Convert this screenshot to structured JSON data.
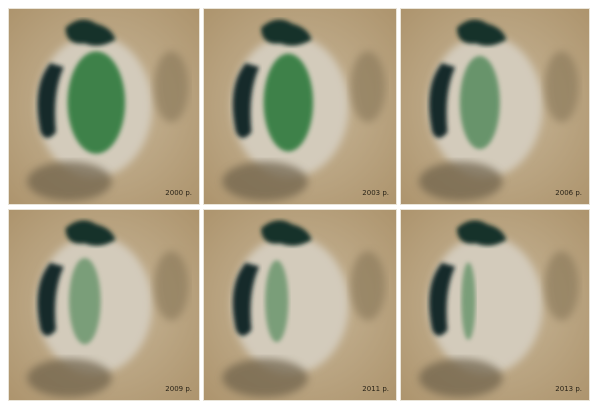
{
  "panels": [
    {
      "label": "2000 р."
    },
    {
      "label": "2003 р."
    },
    {
      "label": "2006 р."
    },
    {
      "label": "2009 р."
    },
    {
      "label": "2011 р."
    },
    {
      "label": "2013 р."
    }
  ]
}
